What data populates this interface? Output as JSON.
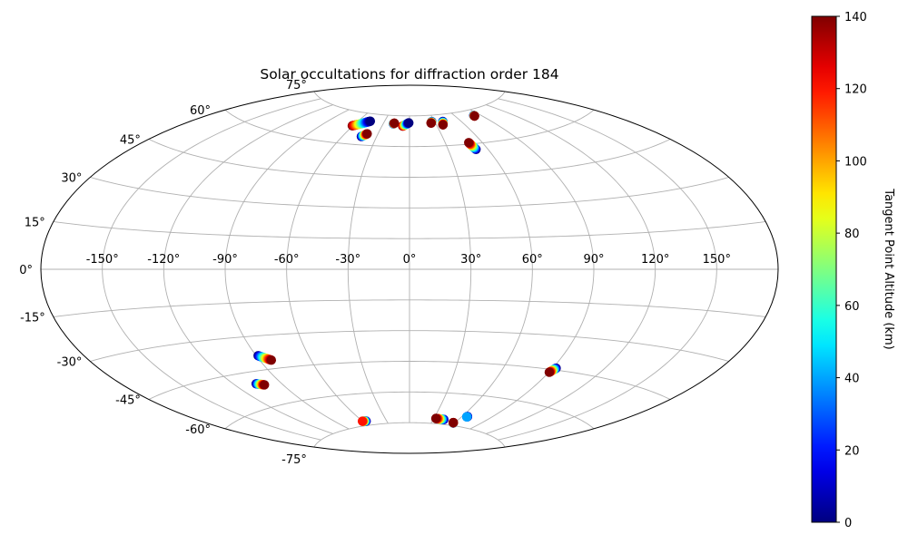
{
  "chart_data": {
    "type": "scatter",
    "projection": "aitoff-style ellipse (longitude / latitude grid)",
    "title": "Solar occultations for diffraction order 184",
    "x_ticks": [
      -150,
      -120,
      -90,
      -60,
      -30,
      0,
      30,
      60,
      90,
      120,
      150
    ],
    "x_tick_labels": [
      "-150°",
      "-120°",
      "-90°",
      "-60°",
      "-30°",
      "0°",
      "30°",
      "60°",
      "90°",
      "120°",
      "150°"
    ],
    "y_ticks": [
      -75,
      -60,
      -45,
      -30,
      -15,
      0,
      15,
      30,
      45,
      60,
      75
    ],
    "y_tick_labels": [
      "-75°",
      "-60°",
      "-45°",
      "-30°",
      "-15°",
      "0°",
      "15°",
      "30°",
      "45°",
      "60°",
      "75°"
    ],
    "xlim": [
      -180,
      180
    ],
    "ylim": [
      -75,
      75
    ],
    "grid": true,
    "colorbar": {
      "label": "Tangent Point Altitude (km)",
      "min": 0,
      "max": 140,
      "ticks": [
        0,
        20,
        40,
        60,
        80,
        100,
        120,
        140
      ],
      "tick_labels": [
        "0",
        "20",
        "40",
        "60",
        "80",
        "100",
        "120",
        "140"
      ],
      "colormap": "jet"
    },
    "tracks": [
      {
        "lon_start": -60.7,
        "lat_start": 68.5,
        "lon_end": -46.5,
        "lat_end": 71.5,
        "alt_start": 140,
        "alt_end": 0
      },
      {
        "lon_start": -43.6,
        "lat_start": 64.0,
        "lon_end": -40.0,
        "lat_end": 65.5,
        "alt_start": 0,
        "alt_end": 140
      },
      {
        "lon_start": -18.4,
        "lat_start": 71.0,
        "lon_end": -17.6,
        "lat_end": 71.3,
        "alt_start": 0,
        "alt_end": 140
      },
      {
        "lon_start": -7.5,
        "lat_start": 70.0,
        "lon_end": -0.8,
        "lat_end": 71.6,
        "alt_start": 140,
        "alt_end": 0
      },
      {
        "lon_start": 26.6,
        "lat_start": 71.9,
        "lon_end": 25.0,
        "lat_end": 71.2,
        "alt_start": 0,
        "alt_end": 140
      },
      {
        "lon_start": 39.5,
        "lat_start": 71.6,
        "lon_end": 37.1,
        "lat_end": 70.0,
        "alt_start": 0,
        "alt_end": 140
      },
      {
        "lon_start": 51.1,
        "lat_start": 57.3,
        "lon_end": 49.2,
        "lat_end": 60.7,
        "alt_start": 0,
        "alt_end": 140
      },
      {
        "lon_start": 82.3,
        "lat_start": 72.4,
        "lon_end": 82.0,
        "lat_end": 72.1,
        "alt_start": 0,
        "alt_end": 140
      },
      {
        "lon_start": -88.9,
        "lat_start": -38.7,
        "lon_end": -83.3,
        "lat_end": -41.2,
        "alt_start": 0,
        "alt_end": 140
      },
      {
        "lon_start": -106.2,
        "lat_start": -50.1,
        "lon_end": -101.9,
        "lat_end": -51.1,
        "alt_start": 0,
        "alt_end": 140
      },
      {
        "lon_start": -55.6,
        "lat_start": -73.0,
        "lon_end": -60.0,
        "lat_end": -72.8,
        "alt_start": 0,
        "alt_end": 120
      },
      {
        "lon_start": 92.1,
        "lat_start": -44.2,
        "lon_end": 90.3,
        "lat_end": -46.3,
        "alt_start": 0,
        "alt_end": 140
      },
      {
        "lon_start": 65.8,
        "lat_start": -70.1,
        "lon_end": 65.5,
        "lat_end": -70.3,
        "alt_start": 0,
        "alt_end": 40
      },
      {
        "lon_start": 43.0,
        "lat_start": -72.7,
        "lon_end": 32.5,
        "lat_end": -72.5,
        "alt_start": 0,
        "alt_end": 140
      },
      {
        "lon_start": 58.5,
        "lat_start": -73.8,
        "lon_end": 58.0,
        "lat_end": -73.6,
        "alt_start": 0,
        "alt_end": 140
      }
    ]
  }
}
